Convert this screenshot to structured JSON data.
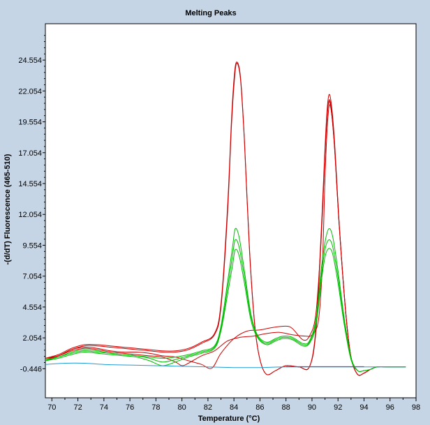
{
  "chart_data": {
    "type": "line",
    "title": "Melting Peaks",
    "xlabel": "Temperature (°C)",
    "ylabel": "-(d/dT) Fluorescence (465-510)",
    "xlim": [
      69.5,
      98
    ],
    "ylim": [
      -2.8,
      27.5
    ],
    "xticks": [
      70,
      72,
      74,
      76,
      78,
      80,
      82,
      84,
      86,
      88,
      90,
      92,
      94,
      96,
      98
    ],
    "yticks": [
      -0.446,
      2.054,
      4.554,
      7.054,
      9.554,
      12.054,
      14.554,
      17.054,
      19.554,
      22.054,
      24.554
    ],
    "ytick_labels": [
      "-0.446",
      "2.054",
      "4.554",
      "7.054",
      "9.554",
      "12.054",
      "14.554",
      "17.054",
      "19.554",
      "22.054",
      "24.554"
    ],
    "grid": false,
    "series": [
      {
        "color": "#cc0000",
        "points": [
          [
            69.5,
            0.3
          ],
          [
            70.5,
            0.6
          ],
          [
            71.5,
            1.1
          ],
          [
            72.5,
            1.4
          ],
          [
            73.5,
            1.4
          ],
          [
            74.5,
            1.3
          ],
          [
            75.5,
            1.2
          ],
          [
            76.5,
            1.1
          ],
          [
            77.5,
            1.0
          ],
          [
            78.5,
            0.9
          ],
          [
            79.5,
            0.9
          ],
          [
            80.5,
            1.1
          ],
          [
            81.5,
            1.6
          ],
          [
            82.5,
            2.3
          ],
          [
            83.0,
            4.5
          ],
          [
            83.5,
            12.0
          ],
          [
            83.8,
            19.0
          ],
          [
            84.0,
            22.5
          ],
          [
            84.2,
            24.3
          ],
          [
            84.5,
            23.0
          ],
          [
            84.8,
            18.0
          ],
          [
            85.2,
            9.0
          ],
          [
            85.6,
            3.0
          ],
          [
            86.0,
            0.3
          ],
          [
            86.5,
            -0.9
          ],
          [
            87.2,
            -0.6
          ],
          [
            88.0,
            -0.2
          ],
          [
            89.0,
            -0.3
          ],
          [
            89.8,
            -0.3
          ],
          [
            90.3,
            2.5
          ],
          [
            90.7,
            10.0
          ],
          [
            91.0,
            17.0
          ],
          [
            91.2,
            20.5
          ],
          [
            91.4,
            21.0
          ],
          [
            91.7,
            18.0
          ],
          [
            92.1,
            11.0
          ],
          [
            92.6,
            4.0
          ],
          [
            93.0,
            0.5
          ],
          [
            93.5,
            -0.9
          ],
          [
            94.0,
            -0.8
          ],
          [
            94.5,
            -0.5
          ],
          [
            95.0,
            -0.3
          ],
          [
            96.0,
            -0.3
          ],
          [
            97.2,
            -0.3
          ]
        ]
      },
      {
        "color": "#cc0000",
        "points": [
          [
            69.5,
            0.4
          ],
          [
            70.5,
            0.7
          ],
          [
            71.5,
            1.2
          ],
          [
            72.5,
            1.5
          ],
          [
            73.5,
            1.5
          ],
          [
            74.5,
            1.4
          ],
          [
            75.5,
            1.3
          ],
          [
            76.5,
            1.2
          ],
          [
            77.5,
            1.1
          ],
          [
            78.5,
            1.0
          ],
          [
            79.5,
            1.0
          ],
          [
            80.5,
            1.2
          ],
          [
            81.5,
            1.7
          ],
          [
            82.5,
            2.4
          ],
          [
            83.0,
            4.8
          ],
          [
            83.5,
            12.5
          ],
          [
            83.8,
            19.5
          ],
          [
            84.0,
            23.0
          ],
          [
            84.2,
            24.4
          ],
          [
            84.5,
            23.2
          ],
          [
            84.8,
            18.2
          ],
          [
            85.2,
            9.2
          ],
          [
            85.6,
            3.1
          ],
          [
            86.0,
            0.3
          ],
          [
            86.5,
            -0.9
          ],
          [
            87.2,
            -0.6
          ],
          [
            88.0,
            -0.2
          ],
          [
            89.0,
            -0.3
          ],
          [
            89.8,
            -0.3
          ],
          [
            90.3,
            2.8
          ],
          [
            90.7,
            10.5
          ],
          [
            91.0,
            17.5
          ],
          [
            91.2,
            21.0
          ],
          [
            91.4,
            21.6
          ],
          [
            91.7,
            18.5
          ],
          [
            92.1,
            11.2
          ],
          [
            92.6,
            4.1
          ],
          [
            93.0,
            0.5
          ],
          [
            93.5,
            -0.9
          ],
          [
            94.0,
            -0.8
          ],
          [
            94.5,
            -0.5
          ],
          [
            95.0,
            -0.3
          ],
          [
            96.0,
            -0.3
          ],
          [
            97.2,
            -0.3
          ]
        ]
      },
      {
        "color": "#cc0000",
        "points": [
          [
            69.5,
            0.4
          ],
          [
            70.5,
            0.6
          ],
          [
            71.5,
            1.0
          ],
          [
            72.5,
            1.2
          ],
          [
            73.5,
            1.1
          ],
          [
            74.5,
            0.9
          ],
          [
            75.5,
            0.8
          ],
          [
            76.5,
            0.7
          ],
          [
            77.5,
            0.6
          ],
          [
            78.5,
            0.5
          ],
          [
            79.5,
            0.1
          ],
          [
            80.0,
            -0.2
          ],
          [
            80.5,
            0.0
          ],
          [
            81.5,
            0.6
          ],
          [
            82.5,
            1.0
          ],
          [
            83.5,
            1.8
          ],
          [
            84.5,
            2.1
          ],
          [
            85.5,
            2.2
          ],
          [
            86.5,
            2.4
          ],
          [
            87.5,
            2.5
          ],
          [
            88.5,
            2.3
          ],
          [
            89.5,
            2.2
          ],
          [
            90.0,
            2.3
          ],
          [
            90.5,
            3.5
          ],
          [
            90.8,
            8.0
          ],
          [
            91.0,
            15.0
          ],
          [
            91.2,
            19.5
          ],
          [
            91.4,
            20.9
          ],
          [
            91.7,
            18.0
          ],
          [
            92.1,
            11.0
          ],
          [
            92.6,
            4.0
          ],
          [
            93.0,
            0.5
          ],
          [
            93.5,
            -0.9
          ],
          [
            94.0,
            -0.8
          ],
          [
            94.5,
            -0.5
          ],
          [
            95.0,
            -0.3
          ],
          [
            96.0,
            -0.3
          ],
          [
            97.2,
            -0.3
          ]
        ]
      },
      {
        "color": "#cc0000",
        "points": [
          [
            69.5,
            0.3
          ],
          [
            70.5,
            0.6
          ],
          [
            71.5,
            1.1
          ],
          [
            72.5,
            1.3
          ],
          [
            73.5,
            1.2
          ],
          [
            74.5,
            1.0
          ],
          [
            75.5,
            0.9
          ],
          [
            76.5,
            0.9
          ],
          [
            77.5,
            0.8
          ],
          [
            78.5,
            0.6
          ],
          [
            79.5,
            0.5
          ],
          [
            80.5,
            0.2
          ],
          [
            81.5,
            -0.1
          ],
          [
            82.3,
            -0.4
          ],
          [
            83.0,
            0.8
          ],
          [
            84.0,
            2.0
          ],
          [
            85.0,
            2.6
          ],
          [
            86.0,
            2.7
          ],
          [
            87.0,
            2.9
          ],
          [
            88.0,
            3.0
          ],
          [
            88.5,
            2.8
          ],
          [
            89.3,
            1.9
          ],
          [
            89.8,
            2.2
          ],
          [
            90.3,
            4.0
          ],
          [
            90.7,
            10.0
          ],
          [
            91.0,
            17.0
          ],
          [
            91.2,
            20.5
          ],
          [
            91.4,
            21.2
          ],
          [
            91.7,
            18.2
          ],
          [
            92.1,
            11.1
          ],
          [
            92.6,
            4.0
          ],
          [
            93.0,
            0.5
          ],
          [
            93.5,
            -0.9
          ],
          [
            94.0,
            -0.8
          ],
          [
            94.5,
            -0.5
          ],
          [
            95.0,
            -0.3
          ],
          [
            96.0,
            -0.3
          ],
          [
            97.2,
            -0.3
          ]
        ]
      },
      {
        "color": "#00bb00",
        "points": [
          [
            69.5,
            0.3
          ],
          [
            70.5,
            0.5
          ],
          [
            71.5,
            0.9
          ],
          [
            72.5,
            1.1
          ],
          [
            73.5,
            1.0
          ],
          [
            74.5,
            0.8
          ],
          [
            75.5,
            0.7
          ],
          [
            76.5,
            0.6
          ],
          [
            77.5,
            0.5
          ],
          [
            78.5,
            0.4
          ],
          [
            79.5,
            0.5
          ],
          [
            80.5,
            0.7
          ],
          [
            81.5,
            1.0
          ],
          [
            82.5,
            1.4
          ],
          [
            83.0,
            3.0
          ],
          [
            83.5,
            6.5
          ],
          [
            83.9,
            9.5
          ],
          [
            84.1,
            10.9
          ],
          [
            84.4,
            10.2
          ],
          [
            84.8,
            7.5
          ],
          [
            85.3,
            4.0
          ],
          [
            85.8,
            2.3
          ],
          [
            86.5,
            1.7
          ],
          [
            87.2,
            2.0
          ],
          [
            87.8,
            2.2
          ],
          [
            88.5,
            2.1
          ],
          [
            89.3,
            1.6
          ],
          [
            89.8,
            1.8
          ],
          [
            90.3,
            3.5
          ],
          [
            90.7,
            7.5
          ],
          [
            91.0,
            9.8
          ],
          [
            91.3,
            10.9
          ],
          [
            91.6,
            10.2
          ],
          [
            92.0,
            7.5
          ],
          [
            92.5,
            3.5
          ],
          [
            93.0,
            0.5
          ],
          [
            93.5,
            -0.6
          ],
          [
            94.0,
            -0.6
          ],
          [
            94.5,
            -0.5
          ],
          [
            95.0,
            -0.3
          ],
          [
            96.0,
            -0.3
          ],
          [
            97.2,
            -0.3
          ]
        ]
      },
      {
        "color": "#00bb00",
        "points": [
          [
            69.5,
            0.2
          ],
          [
            70.5,
            0.5
          ],
          [
            71.5,
            0.8
          ],
          [
            72.5,
            1.0
          ],
          [
            73.5,
            0.9
          ],
          [
            74.5,
            0.8
          ],
          [
            75.5,
            0.7
          ],
          [
            76.5,
            0.6
          ],
          [
            77.5,
            0.4
          ],
          [
            78.5,
            0.1
          ],
          [
            79.5,
            0.3
          ],
          [
            80.5,
            0.6
          ],
          [
            81.5,
            0.9
          ],
          [
            82.5,
            1.3
          ],
          [
            83.0,
            2.8
          ],
          [
            83.5,
            6.0
          ],
          [
            83.9,
            8.8
          ],
          [
            84.1,
            10.0
          ],
          [
            84.4,
            9.4
          ],
          [
            84.8,
            7.0
          ],
          [
            85.3,
            3.8
          ],
          [
            85.8,
            2.2
          ],
          [
            86.5,
            1.6
          ],
          [
            87.2,
            1.9
          ],
          [
            87.8,
            2.1
          ],
          [
            88.5,
            2.0
          ],
          [
            89.3,
            1.5
          ],
          [
            89.8,
            1.7
          ],
          [
            90.3,
            3.3
          ],
          [
            90.7,
            7.0
          ],
          [
            91.0,
            9.2
          ],
          [
            91.3,
            10.0
          ],
          [
            91.6,
            9.4
          ],
          [
            92.0,
            7.0
          ],
          [
            92.5,
            3.3
          ],
          [
            93.0,
            0.4
          ],
          [
            93.5,
            -0.6
          ],
          [
            94.0,
            -0.6
          ],
          [
            94.5,
            -0.5
          ],
          [
            95.0,
            -0.3
          ],
          [
            96.0,
            -0.3
          ],
          [
            97.2,
            -0.3
          ]
        ]
      },
      {
        "color": "#00bb00",
        "points": [
          [
            69.5,
            0.2
          ],
          [
            70.5,
            0.4
          ],
          [
            71.5,
            0.7
          ],
          [
            72.5,
            0.9
          ],
          [
            73.5,
            0.8
          ],
          [
            74.5,
            0.7
          ],
          [
            75.5,
            0.6
          ],
          [
            76.5,
            0.5
          ],
          [
            77.5,
            0.2
          ],
          [
            78.5,
            -0.2
          ],
          [
            79.5,
            0.1
          ],
          [
            80.5,
            0.5
          ],
          [
            81.5,
            0.8
          ],
          [
            82.5,
            1.2
          ],
          [
            83.0,
            2.6
          ],
          [
            83.5,
            5.5
          ],
          [
            83.9,
            8.0
          ],
          [
            84.1,
            9.2
          ],
          [
            84.4,
            8.7
          ],
          [
            84.8,
            6.5
          ],
          [
            85.3,
            3.5
          ],
          [
            85.8,
            2.1
          ],
          [
            86.5,
            1.5
          ],
          [
            87.2,
            1.8
          ],
          [
            87.8,
            2.0
          ],
          [
            88.5,
            1.9
          ],
          [
            89.3,
            1.4
          ],
          [
            89.8,
            1.6
          ],
          [
            90.3,
            3.0
          ],
          [
            90.7,
            6.5
          ],
          [
            91.0,
            8.6
          ],
          [
            91.3,
            9.3
          ],
          [
            91.6,
            8.8
          ],
          [
            92.0,
            6.5
          ],
          [
            92.5,
            3.0
          ],
          [
            93.0,
            0.3
          ],
          [
            93.5,
            -0.6
          ],
          [
            94.0,
            -0.6
          ],
          [
            94.5,
            -0.5
          ],
          [
            95.0,
            -0.3
          ],
          [
            96.0,
            -0.3
          ],
          [
            97.2,
            -0.3
          ]
        ]
      },
      {
        "color": "#1e9bd2",
        "points": [
          [
            69.5,
            -0.1
          ],
          [
            71.0,
            0.0
          ],
          [
            72.5,
            0.0
          ],
          [
            74.0,
            -0.1
          ],
          [
            76.0,
            -0.15
          ],
          [
            78.0,
            -0.2
          ],
          [
            80.0,
            -0.25
          ],
          [
            82.0,
            -0.3
          ],
          [
            84.0,
            -0.35
          ],
          [
            86.0,
            -0.35
          ],
          [
            88.0,
            -0.3
          ],
          [
            90.0,
            -0.3
          ],
          [
            92.0,
            -0.3
          ],
          [
            94.0,
            -0.3
          ],
          [
            96.0,
            -0.3
          ],
          [
            97.2,
            -0.3
          ]
        ]
      },
      {
        "color": "#7d3c98",
        "points": [
          [
            88.0,
            -0.28
          ],
          [
            90.0,
            -0.28
          ],
          [
            92.0,
            -0.28
          ],
          [
            94.0,
            -0.28
          ]
        ]
      }
    ]
  }
}
